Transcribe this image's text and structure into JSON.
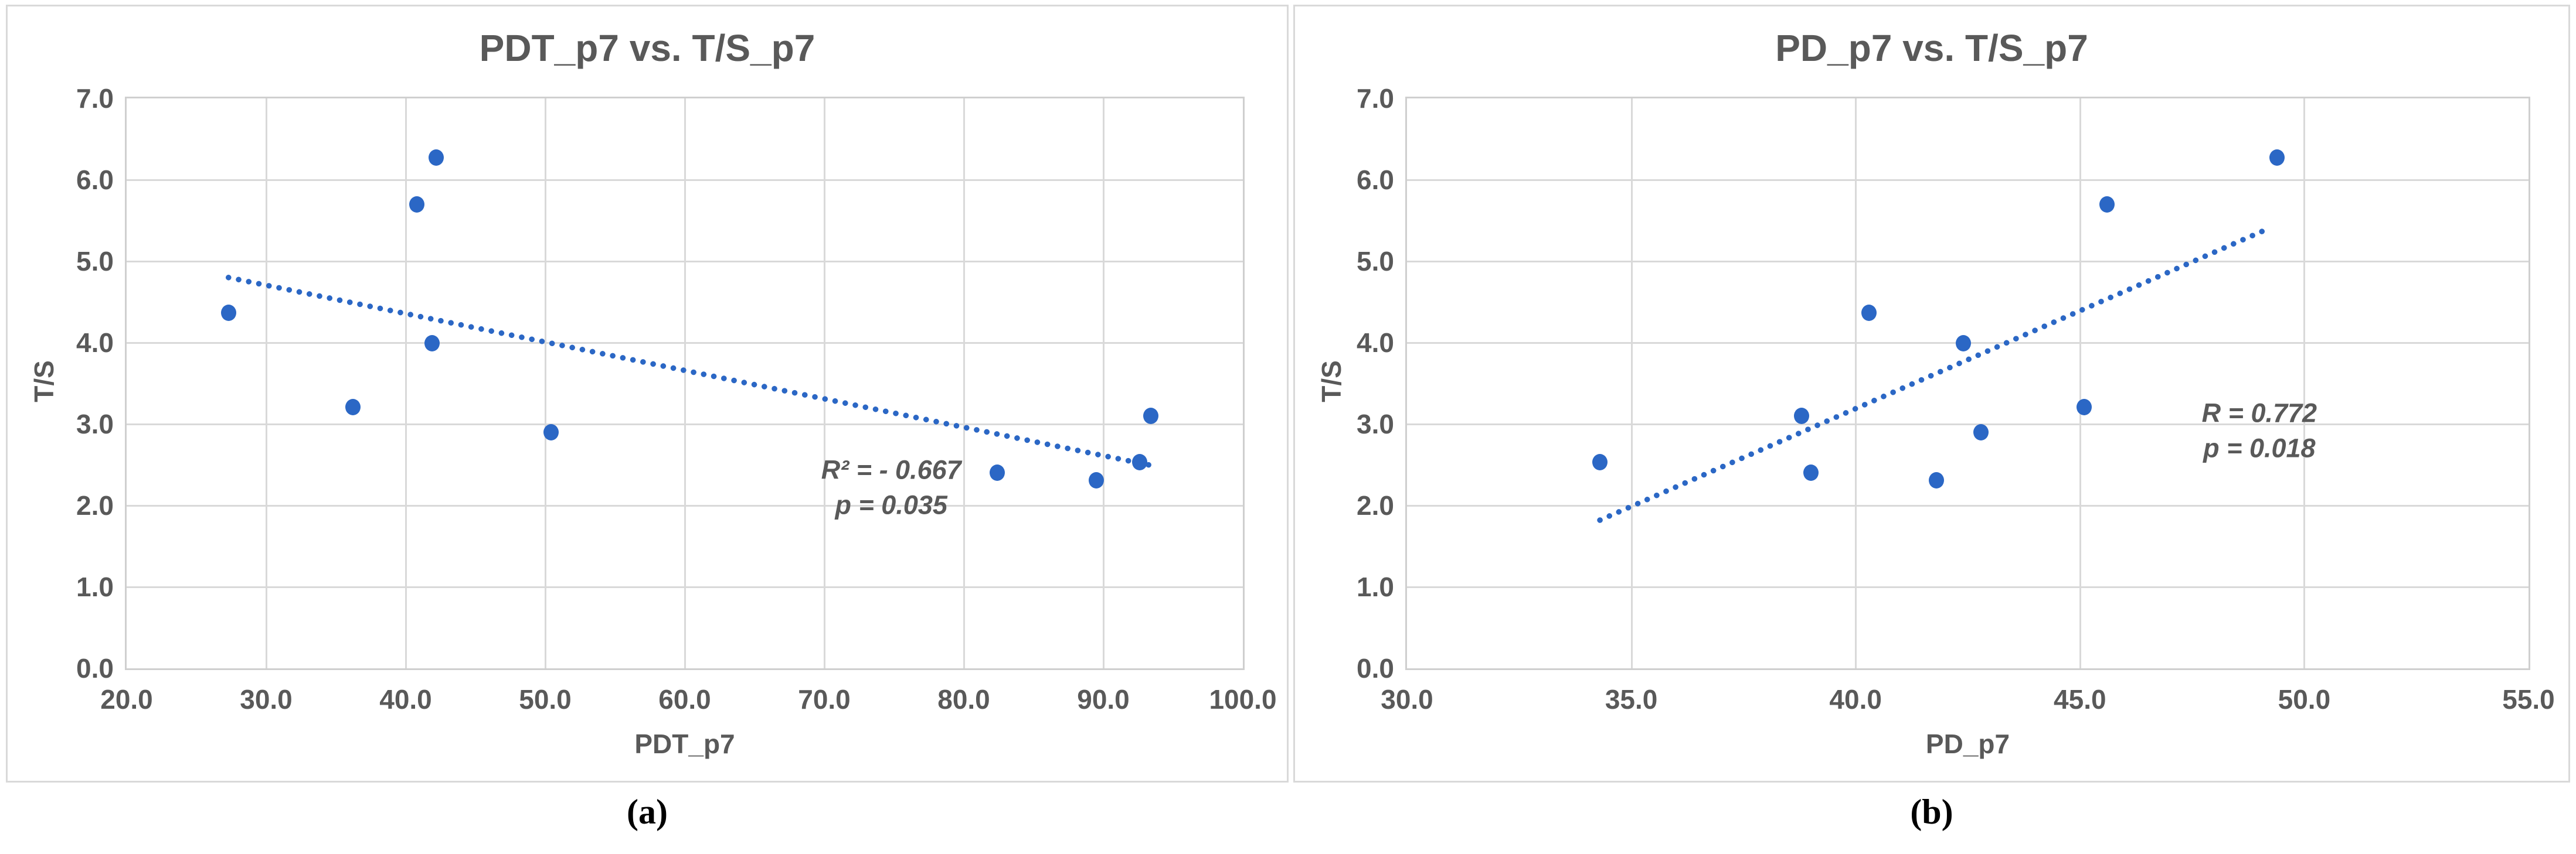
{
  "colors": {
    "marker": "#2b67c5",
    "trendline": "#2b67c5",
    "text": "#595959",
    "gridline": "#d9d9d9",
    "panel_border": "#d9d9d9",
    "background": "#ffffff"
  },
  "chart_data": [
    {
      "type": "scatter",
      "title": "PDT_p7 vs. T/S_p7",
      "xlabel": "PDT_p7",
      "ylabel": "T/S",
      "caption": "(a)",
      "xlim": [
        20,
        100
      ],
      "ylim": [
        0,
        7
      ],
      "x_ticks": [
        20,
        30,
        40,
        50,
        60,
        70,
        80,
        90,
        100
      ],
      "y_ticks": [
        0,
        1,
        2,
        3,
        4,
        5,
        6,
        7
      ],
      "tick_decimals": 1,
      "grid": true,
      "legend": "none",
      "points": [
        [
          27.3,
          4.37
        ],
        [
          36.2,
          3.21
        ],
        [
          40.8,
          5.7
        ],
        [
          42.2,
          6.27
        ],
        [
          41.9,
          3.99
        ],
        [
          50.4,
          2.9
        ],
        [
          82.4,
          2.4
        ],
        [
          89.5,
          2.31
        ],
        [
          92.6,
          2.53
        ],
        [
          93.4,
          3.1
        ]
      ],
      "trendline": {
        "style": "dotted",
        "x1": 27.3,
        "y1": 4.8,
        "x2": 93.5,
        "y2": 2.49
      },
      "annotation": {
        "lines": [
          "R² = - 0.667",
          "p = 0.035"
        ],
        "x": 74.8,
        "y": 2.22
      }
    },
    {
      "type": "scatter",
      "title": "PD_p7 vs. T/S_p7",
      "xlabel": "PD_p7",
      "ylabel": "T/S",
      "caption": "(b)",
      "xlim": [
        30,
        55
      ],
      "ylim": [
        0,
        7
      ],
      "x_ticks": [
        30,
        35,
        40,
        45,
        50,
        55
      ],
      "y_ticks": [
        0,
        1,
        2,
        3,
        4,
        5,
        6,
        7
      ],
      "tick_decimals": 1,
      "grid": true,
      "legend": "none",
      "points": [
        [
          34.3,
          2.53
        ],
        [
          38.8,
          3.1
        ],
        [
          39.0,
          2.4
        ],
        [
          40.3,
          4.37
        ],
        [
          41.8,
          2.31
        ],
        [
          42.4,
          3.99
        ],
        [
          42.8,
          2.9
        ],
        [
          45.1,
          3.21
        ],
        [
          45.6,
          5.7
        ],
        [
          49.4,
          6.27
        ]
      ],
      "trendline": {
        "style": "dotted",
        "x1": 34.3,
        "y1": 1.82,
        "x2": 49.2,
        "y2": 5.4
      },
      "annotation": {
        "lines": [
          "R = 0.772",
          "p = 0.018"
        ],
        "x": 49.0,
        "y": 2.92
      }
    }
  ]
}
